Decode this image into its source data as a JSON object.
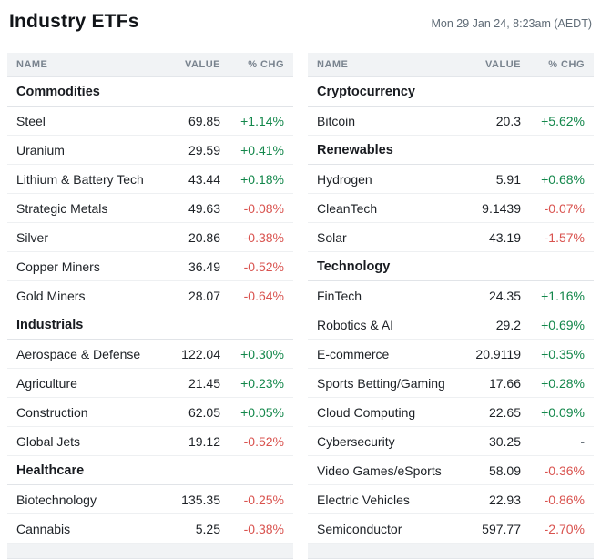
{
  "header": {
    "title": "Industry ETFs",
    "timestamp": "Mon 29 Jan 24, 8:23am (AEDT)"
  },
  "columns": {
    "name": "NAME",
    "value": "VALUE",
    "chg": "% CHG"
  },
  "colors": {
    "positive": "#13874b",
    "negative": "#d9534f",
    "neutral": "#6c757d",
    "header_bg": "#f1f3f5"
  },
  "tables": [
    {
      "id": "left",
      "sections": [
        {
          "label": "Commodities",
          "rows": [
            {
              "name": "Steel",
              "value": "69.85",
              "chg": "+1.14%",
              "dir": "up"
            },
            {
              "name": "Uranium",
              "value": "29.59",
              "chg": "+0.41%",
              "dir": "up"
            },
            {
              "name": "Lithium & Battery Tech",
              "value": "43.44",
              "chg": "+0.18%",
              "dir": "up"
            },
            {
              "name": "Strategic Metals",
              "value": "49.63",
              "chg": "-0.08%",
              "dir": "down"
            },
            {
              "name": "Silver",
              "value": "20.86",
              "chg": "-0.38%",
              "dir": "down"
            },
            {
              "name": "Copper Miners",
              "value": "36.49",
              "chg": "-0.52%",
              "dir": "down"
            },
            {
              "name": "Gold Miners",
              "value": "28.07",
              "chg": "-0.64%",
              "dir": "down"
            }
          ]
        },
        {
          "label": "Industrials",
          "rows": [
            {
              "name": "Aerospace & Defense",
              "value": "122.04",
              "chg": "+0.30%",
              "dir": "up"
            },
            {
              "name": "Agriculture",
              "value": "21.45",
              "chg": "+0.23%",
              "dir": "up"
            },
            {
              "name": "Construction",
              "value": "62.05",
              "chg": "+0.05%",
              "dir": "up"
            },
            {
              "name": "Global Jets",
              "value": "19.12",
              "chg": "-0.52%",
              "dir": "down"
            }
          ]
        },
        {
          "label": "Healthcare",
          "rows": [
            {
              "name": "Biotechnology",
              "value": "135.35",
              "chg": "-0.25%",
              "dir": "down"
            },
            {
              "name": "Cannabis",
              "value": "5.25",
              "chg": "-0.38%",
              "dir": "down"
            }
          ]
        }
      ]
    },
    {
      "id": "right",
      "sections": [
        {
          "label": "Cryptocurrency",
          "rows": [
            {
              "name": "Bitcoin",
              "value": "20.3",
              "chg": "+5.62%",
              "dir": "up"
            }
          ]
        },
        {
          "label": "Renewables",
          "rows": [
            {
              "name": "Hydrogen",
              "value": "5.91",
              "chg": "+0.68%",
              "dir": "up"
            },
            {
              "name": "CleanTech",
              "value": "9.1439",
              "chg": "-0.07%",
              "dir": "down"
            },
            {
              "name": "Solar",
              "value": "43.19",
              "chg": "-1.57%",
              "dir": "down"
            }
          ]
        },
        {
          "label": "Technology",
          "rows": [
            {
              "name": "FinTech",
              "value": "24.35",
              "chg": "+1.16%",
              "dir": "up"
            },
            {
              "name": "Robotics & AI",
              "value": "29.2",
              "chg": "+0.69%",
              "dir": "up"
            },
            {
              "name": "E-commerce",
              "value": "20.9119",
              "chg": "+0.35%",
              "dir": "up"
            },
            {
              "name": "Sports Betting/Gaming",
              "value": "17.66",
              "chg": "+0.28%",
              "dir": "up"
            },
            {
              "name": "Cloud Computing",
              "value": "22.65",
              "chg": "+0.09%",
              "dir": "up"
            },
            {
              "name": "Cybersecurity",
              "value": "30.25",
              "chg": "-",
              "dir": "flat"
            },
            {
              "name": "Video Games/eSports",
              "value": "58.09",
              "chg": "-0.36%",
              "dir": "down"
            },
            {
              "name": "Electric Vehicles",
              "value": "22.93",
              "chg": "-0.86%",
              "dir": "down"
            },
            {
              "name": "Semiconductor",
              "value": "597.77",
              "chg": "-2.70%",
              "dir": "down"
            }
          ]
        }
      ]
    }
  ]
}
